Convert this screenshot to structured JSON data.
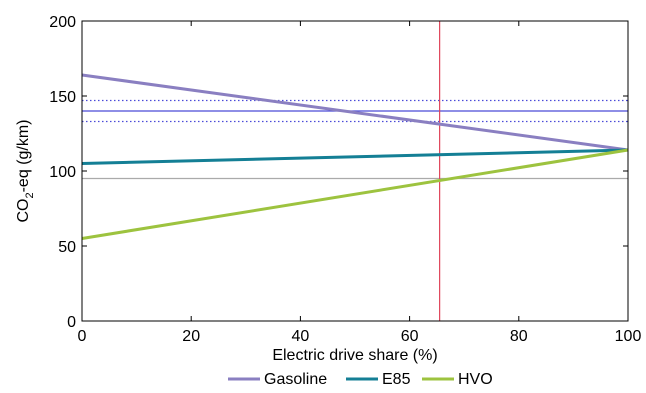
{
  "chart_data": {
    "type": "line",
    "title": "",
    "xlabel": "Electric drive share (%)",
    "ylabel_main": "CO",
    "ylabel_sub": "2",
    "ylabel_rest": "-eq (g/km)",
    "xlim": [
      0,
      100
    ],
    "ylim": [
      0,
      200
    ],
    "xticks": [
      0,
      20,
      40,
      60,
      80,
      100
    ],
    "yticks": [
      0,
      50,
      100,
      150,
      200
    ],
    "grid": false,
    "legend_position": "bottom",
    "series": [
      {
        "name": "Gasoline",
        "color": "#8a7fc1",
        "x": [
          0,
          100
        ],
        "y": [
          164,
          114
        ]
      },
      {
        "name": "E85",
        "color": "#147f95",
        "x": [
          0,
          100
        ],
        "y": [
          105,
          114
        ]
      },
      {
        "name": "HVO",
        "color": "#9dc33f",
        "x": [
          0,
          100
        ],
        "y": [
          55,
          114
        ]
      }
    ],
    "reference_lines": [
      {
        "orientation": "horizontal",
        "value": 140,
        "style": "solid",
        "color": "#4a4ad8"
      },
      {
        "orientation": "horizontal",
        "value": 147,
        "style": "dotted",
        "color": "#4a4ad8"
      },
      {
        "orientation": "horizontal",
        "value": 133,
        "style": "dotted",
        "color": "#4a4ad8"
      },
      {
        "orientation": "horizontal",
        "value": 95,
        "style": "solid",
        "color": "#aaaaaa"
      },
      {
        "orientation": "vertical",
        "value": 65.5,
        "style": "solid",
        "color": "#e0455a"
      }
    ]
  }
}
